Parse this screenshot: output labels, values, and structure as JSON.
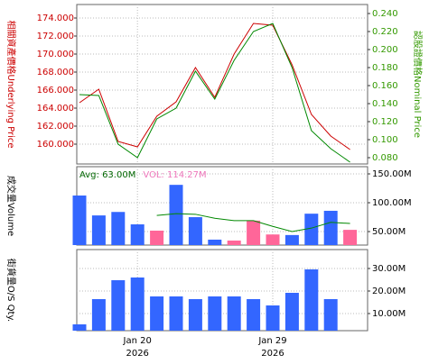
{
  "chart_data": [
    {
      "type": "line",
      "y_label": "相關資產價格Underlying Price",
      "y2_label": "認股證價格Nominal Price",
      "ylim": [
        157.8,
        175.5
      ],
      "yticks": [
        {
          "value": 160,
          "label": "160.000"
        },
        {
          "value": 162,
          "label": "162.000"
        },
        {
          "value": 164,
          "label": "164.000"
        },
        {
          "value": 166,
          "label": "166.000"
        },
        {
          "value": 168,
          "label": "168.000"
        },
        {
          "value": 170,
          "label": "170.000"
        },
        {
          "value": 172,
          "label": "172.000"
        },
        {
          "value": 174,
          "label": "174.000"
        }
      ],
      "y2lim": [
        0.073,
        0.25
      ],
      "y2ticks": [
        {
          "value": 0.08,
          "label": "0.080"
        },
        {
          "value": 0.1,
          "label": "0.100"
        },
        {
          "value": 0.12,
          "label": "0.120"
        },
        {
          "value": 0.14,
          "label": "0.140"
        },
        {
          "value": 0.16,
          "label": "0.160"
        },
        {
          "value": 0.18,
          "label": "0.180"
        },
        {
          "value": 0.2,
          "label": "0.200"
        },
        {
          "value": 0.22,
          "label": "0.220"
        },
        {
          "value": 0.24,
          "label": "0.240"
        }
      ],
      "label_color": "#cc0000",
      "label2_color": "#339900",
      "grid": true,
      "series": [
        {
          "color": "#cc0000",
          "axis": "y",
          "values": [
            164.6,
            166.1,
            160.3,
            159.7,
            163.1,
            164.7,
            168.5,
            165.2,
            170.0,
            173.4,
            173.2,
            168.8,
            163.3,
            160.9,
            159.4
          ]
        },
        {
          "color": "#008800",
          "axis": "y2",
          "values": [
            0.15,
            0.149,
            0.095,
            0.08,
            0.123,
            0.135,
            0.176,
            0.145,
            0.188,
            0.22,
            0.229,
            0.18,
            0.11,
            0.09,
            0.075
          ]
        }
      ]
    },
    {
      "type": "bar",
      "y_label": "成交量Volume",
      "ylim": [
        26.6,
        162.5
      ],
      "yticks": [
        {
          "value": 50,
          "label": "50.00M"
        },
        {
          "value": 100,
          "label": "100.00M"
        },
        {
          "value": 150,
          "label": "150.00M"
        }
      ],
      "grid": true,
      "annotations": [
        {
          "text": "Avg: 63.00M",
          "color": "#006600"
        },
        {
          "text": "VOL: 114.27M",
          "color": "#ee77bb"
        }
      ],
      "series": [
        {
          "type": "bar",
          "values": [
            112.5,
            78,
            84,
            62.5,
            51.6,
            131,
            75,
            36,
            34.4,
            69,
            45,
            44,
            81,
            86,
            53
          ],
          "colors": [
            "#3366ff",
            "#3366ff",
            "#3366ff",
            "#3366ff",
            "#ff6699",
            "#3366ff",
            "#3366ff",
            "#3366ff",
            "#ff6699",
            "#ff6699",
            "#ff6699",
            "#3366ff",
            "#3366ff",
            "#3366ff",
            "#ff6699"
          ]
        },
        {
          "type": "line",
          "color": "#008800",
          "values": [
            null,
            null,
            null,
            null,
            78,
            81,
            80,
            73,
            69,
            69,
            59,
            50,
            56,
            66,
            64
          ]
        }
      ]
    },
    {
      "type": "bar",
      "y_label": "街貨量O/S Qty.",
      "ylim": [
        2.4,
        38.4
      ],
      "yticks": [
        {
          "value": 10,
          "label": "10.00M"
        },
        {
          "value": 20,
          "label": "20.00M"
        },
        {
          "value": 30,
          "label": "30.00M"
        }
      ],
      "grid": true,
      "categories": [
        null,
        null,
        null,
        "Jan 20",
        null,
        null,
        null,
        null,
        null,
        null,
        "Jan 29",
        null,
        null,
        null,
        null
      ],
      "category_sublabels": [
        null,
        null,
        null,
        "2026",
        null,
        null,
        null,
        null,
        null,
        null,
        "2026",
        null,
        null,
        null,
        null
      ],
      "series": [
        {
          "type": "bar",
          "color": "#3366ff",
          "values": [
            5.2,
            16.4,
            24.8,
            26,
            17.6,
            17.6,
            16.4,
            17.6,
            17.6,
            16.4,
            13.6,
            19.2,
            29.6,
            16.4,
            null
          ]
        }
      ]
    }
  ]
}
